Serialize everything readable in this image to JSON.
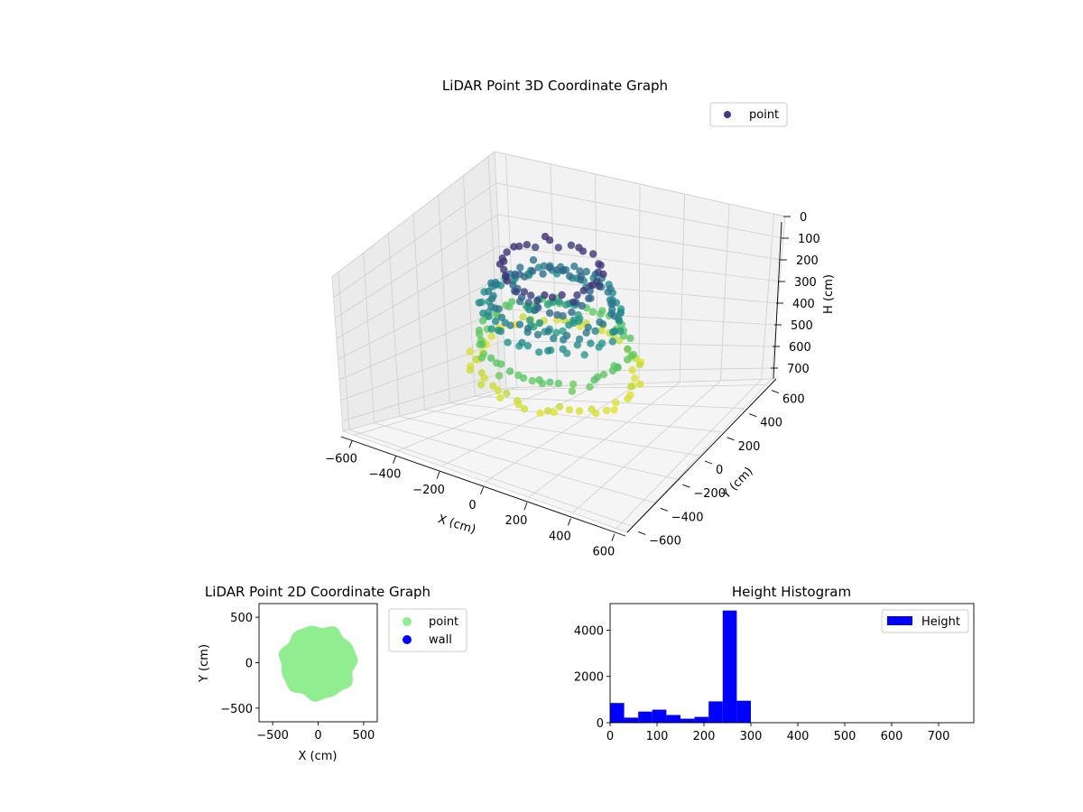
{
  "colors": {
    "point_3d_legend": "#453781",
    "point_2d": "#90ee90",
    "wall": "#0000ff",
    "histogram": "#0000ff",
    "viridis": [
      "#440154",
      "#3b528b",
      "#21918c",
      "#5ec962",
      "#fde725"
    ]
  },
  "chart_data": [
    {
      "type": "scatter",
      "title": "LiDAR Point 3D Coordinate Graph",
      "xlabel": "X (cm)",
      "ylabel": "Y (cm)",
      "zlabel": "H (cm)",
      "xlim": [
        -650,
        650
      ],
      "ylim": [
        -650,
        650
      ],
      "zlim": [
        750,
        0
      ],
      "x_ticks": [
        -600,
        -400,
        -200,
        0,
        200,
        400,
        600
      ],
      "y_ticks": [
        -600,
        -400,
        -200,
        0,
        200,
        400,
        600
      ],
      "z_ticks": [
        0,
        100,
        200,
        300,
        400,
        500,
        600,
        700
      ],
      "x_tick_labels": [
        "−600",
        "−400",
        "−200",
        "0",
        "200",
        "400",
        "600"
      ],
      "y_tick_labels": [
        "−600",
        "−400",
        "−200",
        "0",
        "200",
        "400",
        "600"
      ],
      "z_tick_labels": [
        "0",
        "100",
        "200",
        "300",
        "400",
        "500",
        "600",
        "700"
      ],
      "legend": {
        "position": "top-right",
        "entries": [
          "point"
        ]
      },
      "series": [
        {
          "name": "point",
          "colormap": "viridis",
          "rings": [
            {
              "radius": 330,
              "height": 560,
              "points": 60
            },
            {
              "radius": 300,
              "height": 450,
              "points": 60
            },
            {
              "radius": 280,
              "height": 300,
              "points": 55
            },
            {
              "radius": 250,
              "height": 250,
              "points": 50
            },
            {
              "radius": 200,
              "height": 100,
              "points": 35
            },
            {
              "radius": 150,
              "height": 200,
              "points": 30
            },
            {
              "radius": 100,
              "height": 320,
              "points": 25
            }
          ]
        }
      ]
    },
    {
      "type": "scatter",
      "title": "LiDAR Point 2D Coordinate Graph",
      "xlabel": "X (cm)",
      "ylabel": "Y (cm)",
      "xlim": [
        -650,
        650
      ],
      "ylim": [
        -650,
        650
      ],
      "x_ticks": [
        -500,
        0,
        500
      ],
      "y_ticks": [
        -500,
        0,
        500
      ],
      "x_tick_labels": [
        "−500",
        "0",
        "500"
      ],
      "y_tick_labels": [
        "−500",
        "0",
        "500"
      ],
      "legend": {
        "position": "outside-right",
        "entries": [
          "point",
          "wall"
        ]
      },
      "series": [
        {
          "name": "point",
          "shape": "filled-disk",
          "center": [
            0,
            0
          ],
          "radius": 420
        },
        {
          "name": "wall",
          "values": []
        }
      ]
    },
    {
      "type": "bar",
      "title": "Height Histogram",
      "xlabel": "",
      "ylabel": "",
      "xlim": [
        0,
        775
      ],
      "ylim": [
        0,
        5150
      ],
      "x_ticks": [
        0,
        100,
        200,
        300,
        400,
        500,
        600,
        700
      ],
      "y_ticks": [
        0,
        2000,
        4000
      ],
      "x_tick_labels": [
        "0",
        "100",
        "200",
        "300",
        "400",
        "500",
        "600",
        "700"
      ],
      "y_tick_labels": [
        "0",
        "2000",
        "4000"
      ],
      "legend": {
        "position": "top-right",
        "entries": [
          "Height"
        ]
      },
      "bin_edges": [
        0,
        30,
        60,
        90,
        120,
        150,
        180,
        210,
        240,
        270,
        300
      ],
      "series": [
        {
          "name": "Height",
          "values": [
            850,
            220,
            480,
            560,
            330,
            170,
            250,
            920,
            4850,
            950
          ]
        }
      ]
    }
  ]
}
